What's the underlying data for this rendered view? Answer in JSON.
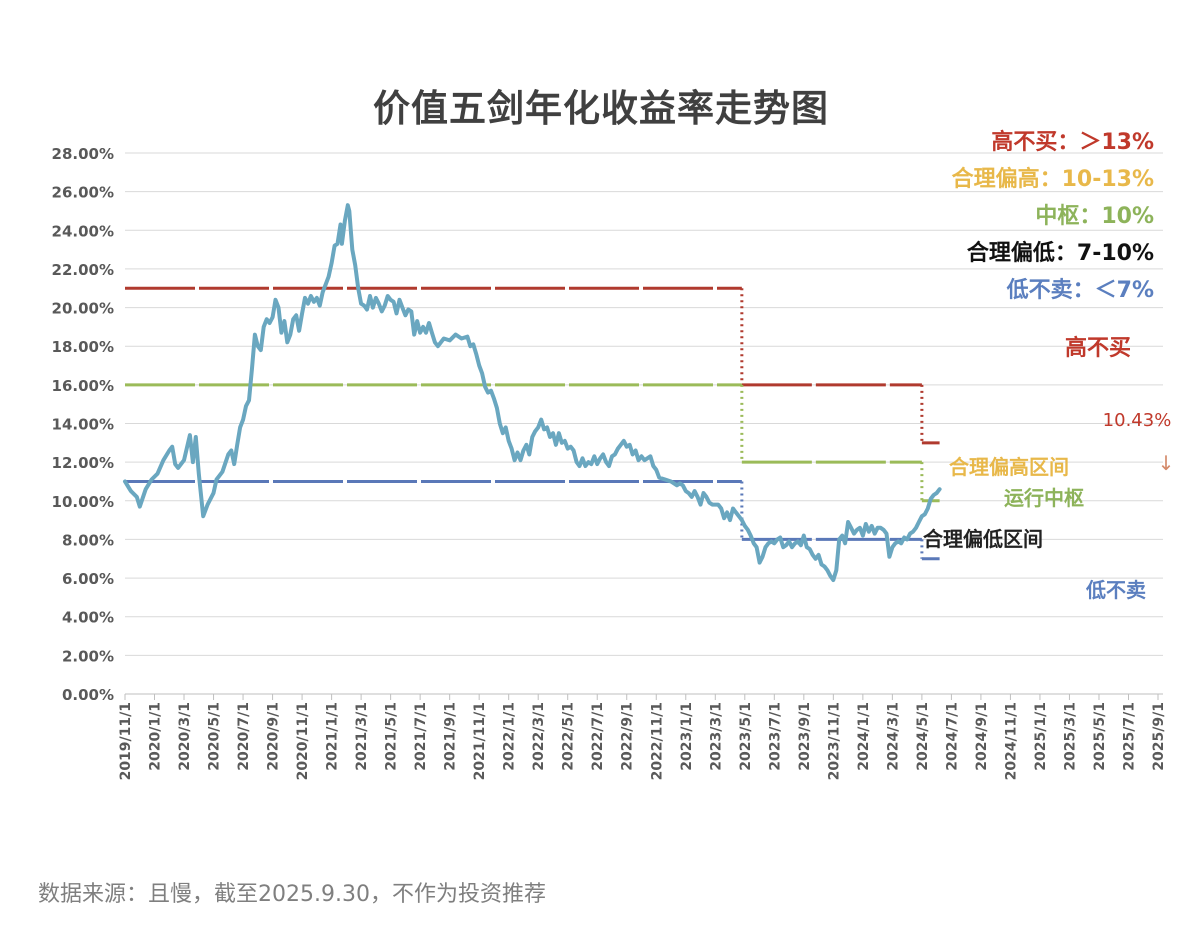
{
  "title": "价值五剑年化收益率走势图",
  "source": "数据来源：且慢，截至2025.9.30，不作为投资推荐",
  "legend": [
    {
      "label": "高不买：＞13%",
      "color": "#c0392b"
    },
    {
      "label": "合理偏高：10-13%",
      "color": "#e8b84a"
    },
    {
      "label": "中枢：10%",
      "color": "#8db35a"
    },
    {
      "label": "合理偏低：7-10%",
      "color": "#111111"
    },
    {
      "label": "低不卖：＜7%",
      "color": "#5b7fbf"
    }
  ],
  "colors": {
    "main_line": "#6aa7c0",
    "red": "#b03a2e",
    "green": "#9bbb59",
    "blue": "#5a78b8",
    "yellow": "#e8b84a",
    "grid": "#d9d9d9",
    "axis_text": "#595959"
  },
  "chart_data": {
    "type": "line",
    "title": "价值五剑年化收益率走势图",
    "xlabel": "",
    "ylabel": "",
    "ylim": [
      0,
      28
    ],
    "y_ticks": [
      "0.00%",
      "2.00%",
      "4.00%",
      "6.00%",
      "8.00%",
      "10.00%",
      "12.00%",
      "14.00%",
      "16.00%",
      "18.00%",
      "20.00%",
      "22.00%",
      "24.00%",
      "26.00%",
      "28.00%"
    ],
    "x_ticks": [
      "2019/11/1",
      "2020/1/1",
      "2020/3/1",
      "2020/5/1",
      "2020/7/1",
      "2020/9/1",
      "2020/11/1",
      "2021/1/1",
      "2021/3/1",
      "2021/5/1",
      "2021/7/1",
      "2021/9/1",
      "2021/11/1",
      "2022/1/1",
      "2022/3/1",
      "2022/5/1",
      "2022/7/1",
      "2022/9/1",
      "2022/11/1",
      "2023/1/1",
      "2023/3/1",
      "2023/5/1",
      "2023/7/1",
      "2023/9/1",
      "2023/11/1",
      "2024/1/1",
      "2024/3/1",
      "2024/5/1",
      "2024/7/1",
      "2024/9/1",
      "2024/11/1",
      "2025/1/1",
      "2025/3/1",
      "2025/5/1",
      "2025/7/1",
      "2025/9/1"
    ],
    "grid": true,
    "series": [
      {
        "values": [
          [
            0,
            11.0
          ],
          [
            0.2,
            10.5
          ],
          [
            0.4,
            10.2
          ],
          [
            0.5,
            9.7
          ],
          [
            0.7,
            10.6
          ],
          [
            0.9,
            11.1
          ],
          [
            1.1,
            11.4
          ],
          [
            1.3,
            12.1
          ],
          [
            1.5,
            12.6
          ],
          [
            1.6,
            12.8
          ],
          [
            1.7,
            11.9
          ],
          [
            1.8,
            11.7
          ],
          [
            2.0,
            12.1
          ],
          [
            2.2,
            13.4
          ],
          [
            2.3,
            12.0
          ],
          [
            2.4,
            13.3
          ],
          [
            2.5,
            11.4
          ],
          [
            2.65,
            9.2
          ],
          [
            2.8,
            9.8
          ],
          [
            3.0,
            10.4
          ],
          [
            3.1,
            11.1
          ],
          [
            3.3,
            11.5
          ],
          [
            3.5,
            12.4
          ],
          [
            3.6,
            12.6
          ],
          [
            3.7,
            11.9
          ],
          [
            3.8,
            12.9
          ],
          [
            3.9,
            13.8
          ],
          [
            4.0,
            14.2
          ],
          [
            4.1,
            14.9
          ],
          [
            4.2,
            15.2
          ],
          [
            4.3,
            16.8
          ],
          [
            4.4,
            18.6
          ],
          [
            4.5,
            18.0
          ],
          [
            4.6,
            17.8
          ],
          [
            4.7,
            19.0
          ],
          [
            4.8,
            19.4
          ],
          [
            4.9,
            19.2
          ],
          [
            5.0,
            19.5
          ],
          [
            5.1,
            20.4
          ],
          [
            5.2,
            20.0
          ],
          [
            5.3,
            18.7
          ],
          [
            5.4,
            19.3
          ],
          [
            5.5,
            18.2
          ],
          [
            5.6,
            18.6
          ],
          [
            5.7,
            19.4
          ],
          [
            5.8,
            19.6
          ],
          [
            5.9,
            18.8
          ],
          [
            6.0,
            19.7
          ],
          [
            6.1,
            20.5
          ],
          [
            6.2,
            20.2
          ],
          [
            6.3,
            20.6
          ],
          [
            6.4,
            20.3
          ],
          [
            6.5,
            20.5
          ],
          [
            6.6,
            20.1
          ],
          [
            6.7,
            20.8
          ],
          [
            6.8,
            21.2
          ],
          [
            6.9,
            21.6
          ],
          [
            7.0,
            22.3
          ],
          [
            7.1,
            23.2
          ],
          [
            7.2,
            23.3
          ],
          [
            7.3,
            24.3
          ],
          [
            7.35,
            23.3
          ],
          [
            7.45,
            24.5
          ],
          [
            7.55,
            25.3
          ],
          [
            7.6,
            25.0
          ],
          [
            7.7,
            23.0
          ],
          [
            7.8,
            22.2
          ],
          [
            7.9,
            21.0
          ],
          [
            8.0,
            20.2
          ],
          [
            8.1,
            20.1
          ],
          [
            8.2,
            19.9
          ],
          [
            8.3,
            20.6
          ],
          [
            8.4,
            20.0
          ],
          [
            8.5,
            20.5
          ],
          [
            8.6,
            20.2
          ],
          [
            8.7,
            19.8
          ],
          [
            8.8,
            20.1
          ],
          [
            8.9,
            20.6
          ],
          [
            9.0,
            20.4
          ],
          [
            9.1,
            20.3
          ],
          [
            9.2,
            19.7
          ],
          [
            9.3,
            20.4
          ],
          [
            9.4,
            20.0
          ],
          [
            9.5,
            19.6
          ],
          [
            9.6,
            19.9
          ],
          [
            9.7,
            19.8
          ],
          [
            9.8,
            18.6
          ],
          [
            9.9,
            19.3
          ],
          [
            10.0,
            18.7
          ],
          [
            10.1,
            19.0
          ],
          [
            10.2,
            18.7
          ],
          [
            10.3,
            19.2
          ],
          [
            10.4,
            18.7
          ],
          [
            10.5,
            18.2
          ],
          [
            10.6,
            18.0
          ],
          [
            10.8,
            18.4
          ],
          [
            11.0,
            18.3
          ],
          [
            11.2,
            18.6
          ],
          [
            11.4,
            18.4
          ],
          [
            11.6,
            18.5
          ],
          [
            11.7,
            18.0
          ],
          [
            11.8,
            18.1
          ],
          [
            11.9,
            17.6
          ],
          [
            12.0,
            17.0
          ],
          [
            12.1,
            16.6
          ],
          [
            12.2,
            15.9
          ],
          [
            12.3,
            15.6
          ],
          [
            12.4,
            15.7
          ],
          [
            12.5,
            15.3
          ],
          [
            12.6,
            14.8
          ],
          [
            12.7,
            14.0
          ],
          [
            12.8,
            13.5
          ],
          [
            12.9,
            13.8
          ],
          [
            13.0,
            13.1
          ],
          [
            13.1,
            12.7
          ],
          [
            13.2,
            12.1
          ],
          [
            13.3,
            12.5
          ],
          [
            13.4,
            12.1
          ],
          [
            13.5,
            12.6
          ],
          [
            13.6,
            12.9
          ],
          [
            13.7,
            12.4
          ],
          [
            13.8,
            13.3
          ],
          [
            13.9,
            13.6
          ],
          [
            14.0,
            13.8
          ],
          [
            14.1,
            14.2
          ],
          [
            14.2,
            13.7
          ],
          [
            14.3,
            13.8
          ],
          [
            14.4,
            13.3
          ],
          [
            14.5,
            13.5
          ],
          [
            14.6,
            12.9
          ],
          [
            14.7,
            13.5
          ],
          [
            14.8,
            13.0
          ],
          [
            14.9,
            13.1
          ],
          [
            15.0,
            12.7
          ],
          [
            15.1,
            12.8
          ],
          [
            15.2,
            12.6
          ],
          [
            15.3,
            12.0
          ],
          [
            15.4,
            11.8
          ],
          [
            15.5,
            12.2
          ],
          [
            15.6,
            11.8
          ],
          [
            15.7,
            12.0
          ],
          [
            15.8,
            11.9
          ],
          [
            15.9,
            12.3
          ],
          [
            16.0,
            11.9
          ],
          [
            16.1,
            12.2
          ],
          [
            16.2,
            12.4
          ],
          [
            16.3,
            12.0
          ],
          [
            16.4,
            11.8
          ],
          [
            16.5,
            12.3
          ],
          [
            16.6,
            12.4
          ],
          [
            16.7,
            12.7
          ],
          [
            16.8,
            12.9
          ],
          [
            16.9,
            13.1
          ],
          [
            17.0,
            12.8
          ],
          [
            17.1,
            12.9
          ],
          [
            17.2,
            12.4
          ],
          [
            17.3,
            12.6
          ],
          [
            17.4,
            12.1
          ],
          [
            17.5,
            12.3
          ],
          [
            17.6,
            12.1
          ],
          [
            17.7,
            12.2
          ],
          [
            17.8,
            12.3
          ],
          [
            17.9,
            11.8
          ],
          [
            18.0,
            11.6
          ],
          [
            18.1,
            11.2
          ],
          [
            18.3,
            11.1
          ],
          [
            18.5,
            11.0
          ],
          [
            18.7,
            10.8
          ],
          [
            18.8,
            10.9
          ],
          [
            18.9,
            10.8
          ],
          [
            19.0,
            10.5
          ],
          [
            19.1,
            10.4
          ],
          [
            19.2,
            10.2
          ],
          [
            19.3,
            10.5
          ],
          [
            19.4,
            10.2
          ],
          [
            19.5,
            9.8
          ],
          [
            19.6,
            10.4
          ],
          [
            19.7,
            10.2
          ],
          [
            19.8,
            9.9
          ],
          [
            19.9,
            9.8
          ],
          [
            20.1,
            9.8
          ],
          [
            20.2,
            9.6
          ],
          [
            20.3,
            9.1
          ],
          [
            20.4,
            9.4
          ],
          [
            20.5,
            9.0
          ],
          [
            20.6,
            9.6
          ],
          [
            20.7,
            9.4
          ],
          [
            20.8,
            9.2
          ],
          [
            20.9,
            9.0
          ],
          [
            21.0,
            8.7
          ],
          [
            21.1,
            8.5
          ],
          [
            21.2,
            8.2
          ],
          [
            21.3,
            7.8
          ],
          [
            21.4,
            7.6
          ],
          [
            21.5,
            6.8
          ],
          [
            21.6,
            7.1
          ],
          [
            21.7,
            7.6
          ],
          [
            21.8,
            7.8
          ],
          [
            21.9,
            7.9
          ],
          [
            22.0,
            7.8
          ],
          [
            22.1,
            8.0
          ],
          [
            22.2,
            8.1
          ],
          [
            22.3,
            7.6
          ],
          [
            22.4,
            7.7
          ],
          [
            22.5,
            7.9
          ],
          [
            22.6,
            7.6
          ],
          [
            22.7,
            7.8
          ],
          [
            22.8,
            7.9
          ],
          [
            22.9,
            7.7
          ],
          [
            23.0,
            8.2
          ],
          [
            23.1,
            7.6
          ],
          [
            23.2,
            7.5
          ],
          [
            23.3,
            7.2
          ],
          [
            23.4,
            7.0
          ],
          [
            23.5,
            7.2
          ],
          [
            23.6,
            6.7
          ],
          [
            23.7,
            6.6
          ],
          [
            23.8,
            6.4
          ],
          [
            23.9,
            6.1
          ],
          [
            24.0,
            5.9
          ],
          [
            24.1,
            6.4
          ],
          [
            24.2,
            8.0
          ],
          [
            24.3,
            8.2
          ],
          [
            24.4,
            7.8
          ],
          [
            24.5,
            8.9
          ],
          [
            24.6,
            8.6
          ],
          [
            24.7,
            8.3
          ],
          [
            24.8,
            8.5
          ],
          [
            24.9,
            8.6
          ],
          [
            25.0,
            8.2
          ],
          [
            25.1,
            8.8
          ],
          [
            25.2,
            8.4
          ],
          [
            25.3,
            8.7
          ],
          [
            25.4,
            8.3
          ],
          [
            25.5,
            8.6
          ],
          [
            25.6,
            8.6
          ],
          [
            25.7,
            8.5
          ],
          [
            25.8,
            8.3
          ],
          [
            25.9,
            7.1
          ],
          [
            26.0,
            7.6
          ],
          [
            26.1,
            7.8
          ],
          [
            26.2,
            7.9
          ],
          [
            26.3,
            7.8
          ],
          [
            26.4,
            8.1
          ],
          [
            26.5,
            8.0
          ],
          [
            26.6,
            8.3
          ],
          [
            26.7,
            8.4
          ],
          [
            26.8,
            8.6
          ],
          [
            26.9,
            8.9
          ],
          [
            27.0,
            9.2
          ],
          [
            27.1,
            9.3
          ],
          [
            27.2,
            9.6
          ],
          [
            27.3,
            10.1
          ],
          [
            27.4,
            10.3
          ],
          [
            27.5,
            10.4
          ],
          [
            27.6,
            10.6
          ]
        ]
      }
    ],
    "reference_lines": [
      {
        "label": "高不买",
        "color": "#b03a2e",
        "segments": [
          [
            0,
            21.0,
            20.9,
            21.0
          ],
          [
            20.9,
            16.0,
            27.0,
            16.0
          ],
          [
            27.0,
            13.0,
            27.6,
            13.0
          ]
        ],
        "drops": [
          [
            20.9,
            21.0,
            16.0
          ],
          [
            27.0,
            16.0,
            13.0
          ]
        ]
      },
      {
        "label": "运行中枢",
        "color": "#9bbb59",
        "segments": [
          [
            0,
            16.0,
            20.9,
            16.0
          ],
          [
            20.9,
            12.0,
            27.0,
            12.0
          ],
          [
            27.0,
            10.0,
            27.6,
            10.0
          ]
        ],
        "drops": [
          [
            20.9,
            16.0,
            12.0
          ],
          [
            27.0,
            12.0,
            10.0
          ]
        ]
      },
      {
        "label": "低不卖",
        "color": "#5a78b8",
        "segments": [
          [
            0,
            11.0,
            20.9,
            11.0
          ],
          [
            20.9,
            8.0,
            27.0,
            8.0
          ],
          [
            27.0,
            7.0,
            27.6,
            7.0
          ]
        ],
        "drops": [
          [
            20.9,
            11.0,
            8.0
          ],
          [
            27.0,
            8.0,
            7.0
          ]
        ]
      }
    ],
    "annotations": [
      {
        "text": "高不买",
        "color": "#c0392b"
      },
      {
        "text": "10.43%",
        "color": "#c0392b"
      },
      {
        "text": "↓",
        "color": "#d48a6a"
      },
      {
        "text": "合理偏高区间",
        "color": "#e8b84a"
      },
      {
        "text": "运行中枢",
        "color": "#8db35a"
      },
      {
        "text": "合理偏低区间",
        "color": "#222222"
      },
      {
        "text": "低不卖",
        "color": "#5b7fbf"
      }
    ]
  }
}
